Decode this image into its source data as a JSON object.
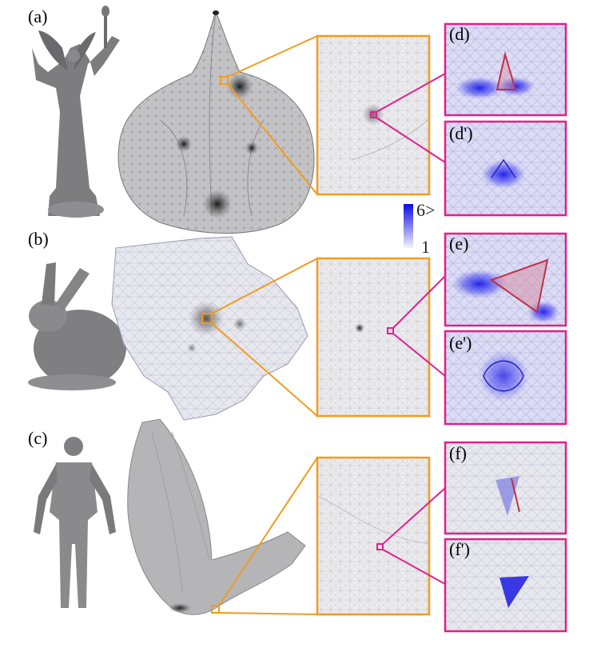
{
  "panels": {
    "a": "(a)",
    "b": "(b)",
    "c": "(c)",
    "d": "(d)",
    "d_prime": "(d')",
    "e": "(e)",
    "e_prime": "(e')",
    "f": "(f)",
    "f_prime": "(f')"
  },
  "colorbar": {
    "max_label": "6>",
    "min_label": "1",
    "color_high": "#0a0ae6",
    "color_low": "#f4f4fb"
  },
  "colors": {
    "zoom_frame": "#f29b1e",
    "detail_frame": "#e0208c",
    "edge_highlight": "#c0304a"
  }
}
